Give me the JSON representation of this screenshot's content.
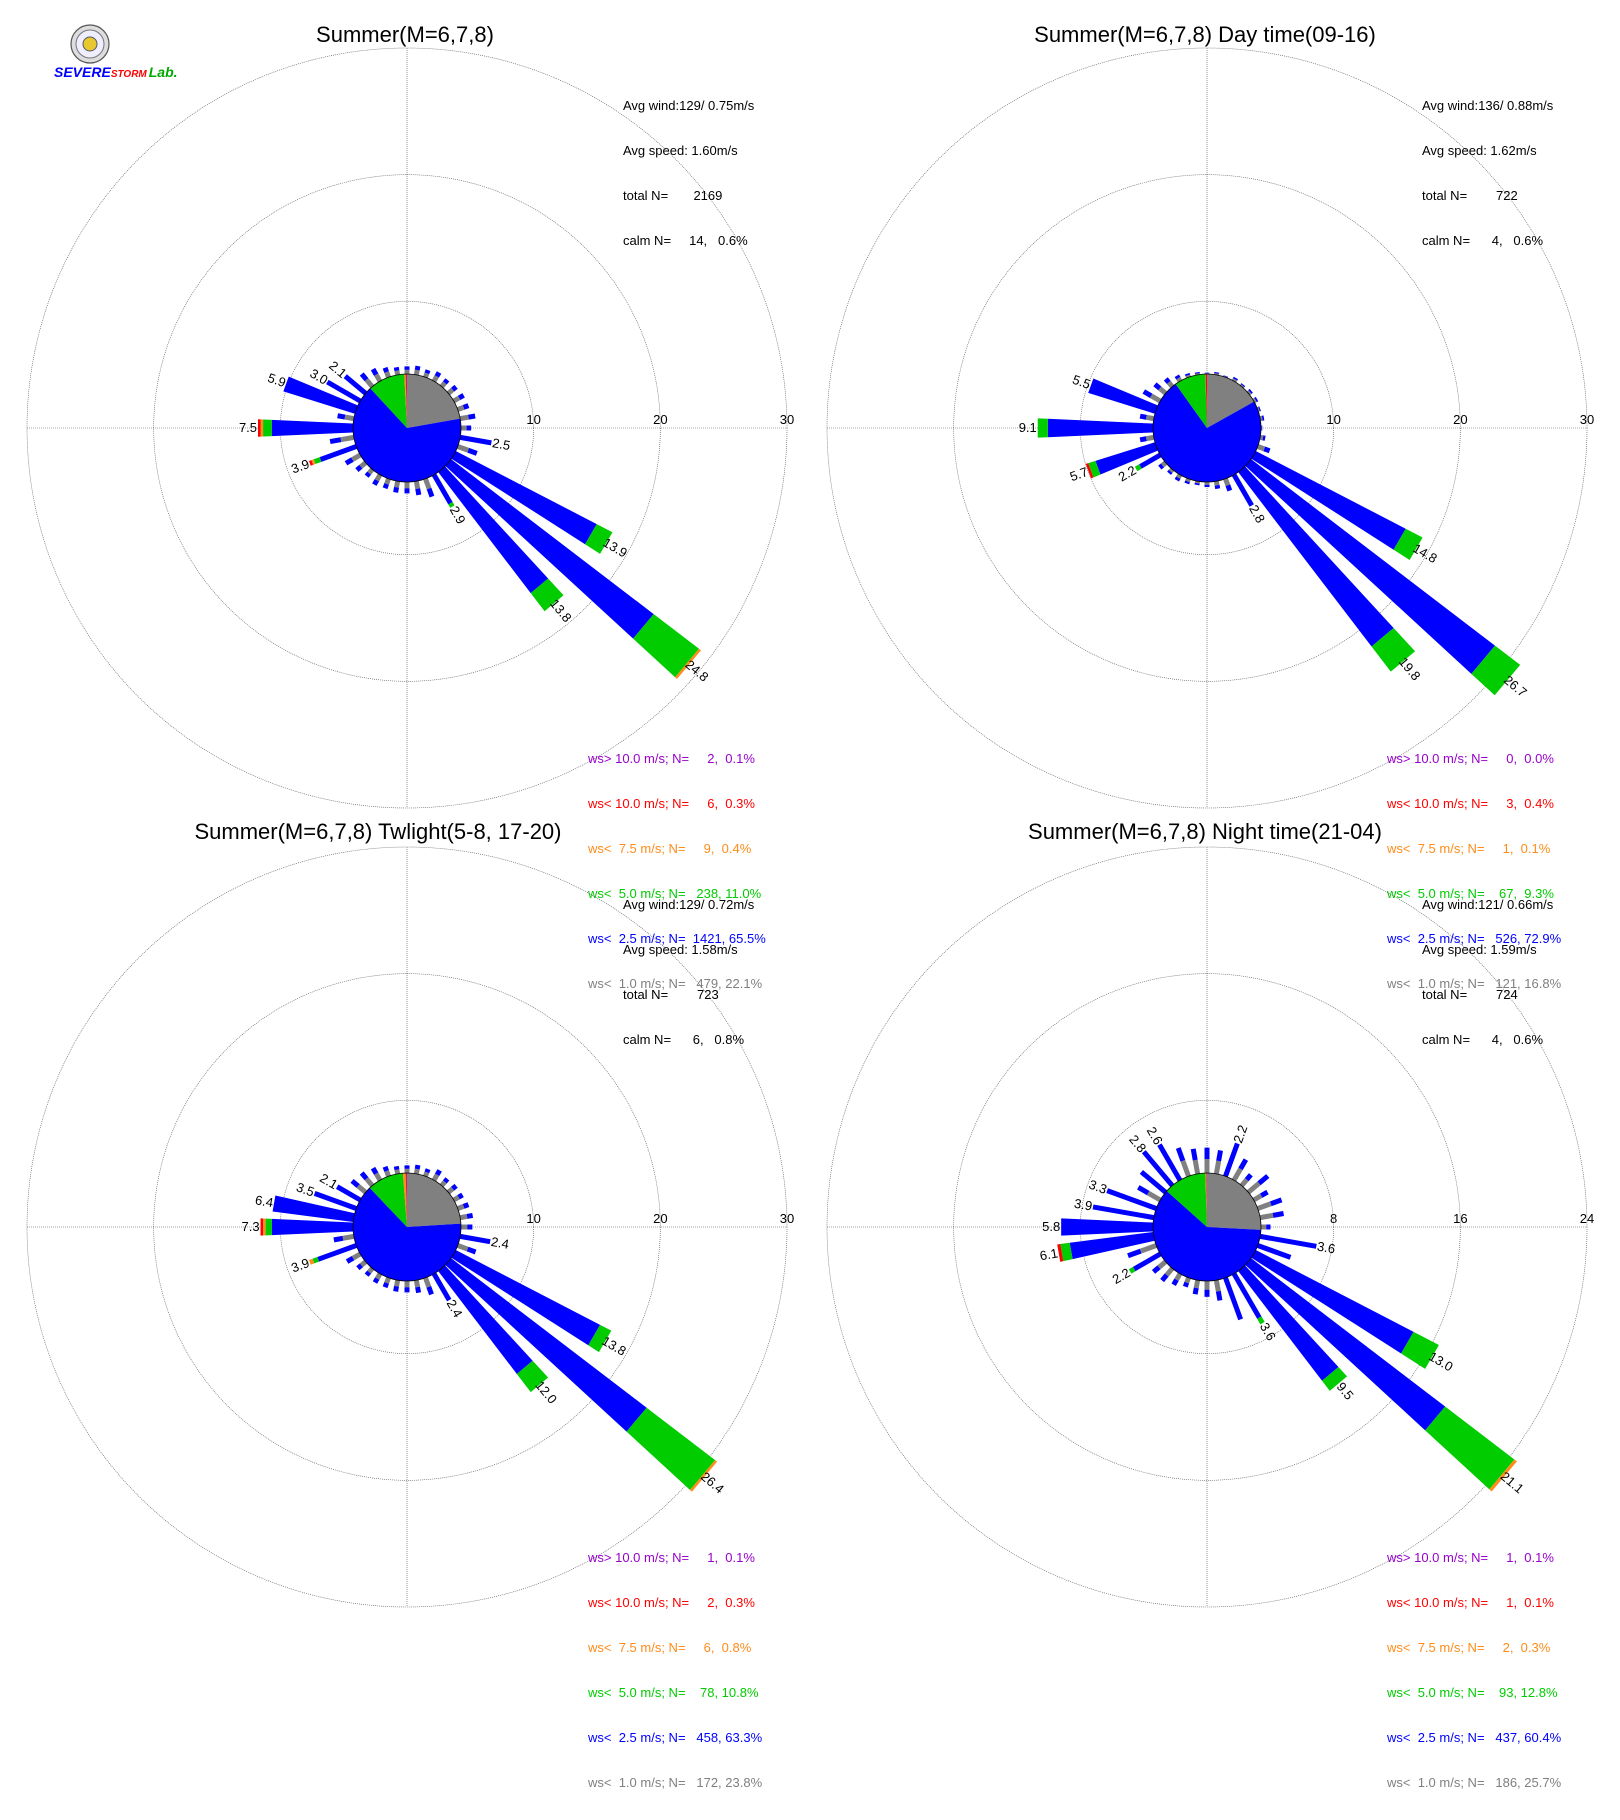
{
  "logo": {
    "text_severe": "SEVERE",
    "text_storm": "STORM",
    "text_lab": "Lab."
  },
  "colors": {
    "gt10": "#9900cc",
    "lt10": "#ff0000",
    "lt7_5": "#ff8c1a",
    "lt5": "#00cc00",
    "lt2_5": "#0000ff",
    "lt1": "#808080"
  },
  "panels": [
    {
      "title": "Summer(M=6,7,8)",
      "stats": [
        "Avg wind:129/ 0.75m/s",
        "Avg speed: 1.60m/s",
        "total N=       2169",
        "calm N=     14,   0.6%"
      ],
      "legend": [
        {
          "text": "ws> 10.0 m/s; N=     2,  0.1%",
          "color": "#9900cc"
        },
        {
          "text": "ws< 10.0 m/s; N=     6,  0.3%",
          "color": "#ff0000"
        },
        {
          "text": "ws<  7.5 m/s; N=     9,  0.4%",
          "color": "#ff8c1a"
        },
        {
          "text": "ws<  5.0 m/s; N=   238, 11.0%",
          "color": "#00cc00"
        },
        {
          "text": "ws<  2.5 m/s; N=  1421, 65.5%",
          "color": "#0000ff"
        },
        {
          "text": "ws<  1.0 m/s; N=   479, 22.1%",
          "color": "#808080"
        }
      ]
    },
    {
      "title": "Summer(M=6,7,8) Day time(09-16)",
      "stats": [
        "Avg wind:136/ 0.88m/s",
        "Avg speed: 1.62m/s",
        "total N=        722",
        "calm N=      4,   0.6%"
      ],
      "legend": [
        {
          "text": "ws> 10.0 m/s; N=     0,  0.0%",
          "color": "#9900cc"
        },
        {
          "text": "ws< 10.0 m/s; N=     3,  0.4%",
          "color": "#ff0000"
        },
        {
          "text": "ws<  7.5 m/s; N=     1,  0.1%",
          "color": "#ff8c1a"
        },
        {
          "text": "ws<  5.0 m/s; N=    67,  9.3%",
          "color": "#00cc00"
        },
        {
          "text": "ws<  2.5 m/s; N=   526, 72.9%",
          "color": "#0000ff"
        },
        {
          "text": "ws<  1.0 m/s; N=   121, 16.8%",
          "color": "#808080"
        }
      ]
    },
    {
      "title": "Summer(M=6,7,8) Twlight(5-8, 17-20)",
      "stats": [
        "Avg wind:129/ 0.72m/s",
        "Avg speed: 1.58m/s",
        "total N=        723",
        "calm N=      6,   0.8%"
      ],
      "legend": [
        {
          "text": "ws> 10.0 m/s; N=     1,  0.1%",
          "color": "#9900cc"
        },
        {
          "text": "ws< 10.0 m/s; N=     2,  0.3%",
          "color": "#ff0000"
        },
        {
          "text": "ws<  7.5 m/s; N=     6,  0.8%",
          "color": "#ff8c1a"
        },
        {
          "text": "ws<  5.0 m/s; N=    78, 10.8%",
          "color": "#00cc00"
        },
        {
          "text": "ws<  2.5 m/s; N=   458, 63.3%",
          "color": "#0000ff"
        },
        {
          "text": "ws<  1.0 m/s; N=   172, 23.8%",
          "color": "#808080"
        }
      ]
    },
    {
      "title": "Summer(M=6,7,8) Night time(21-04)",
      "stats": [
        "Avg wind:121/ 0.66m/s",
        "Avg speed: 1.59m/s",
        "total N=        724",
        "calm N=      4,   0.6%"
      ],
      "legend": [
        {
          "text": "ws> 10.0 m/s; N=     1,  0.1%",
          "color": "#9900cc"
        },
        {
          "text": "ws< 10.0 m/s; N=     1,  0.1%",
          "color": "#ff0000"
        },
        {
          "text": "ws<  7.5 m/s; N=     2,  0.3%",
          "color": "#ff8c1a"
        },
        {
          "text": "ws<  5.0 m/s; N=    93, 12.8%",
          "color": "#00cc00"
        },
        {
          "text": "ws<  2.5 m/s; N=   437, 60.4%",
          "color": "#0000ff"
        },
        {
          "text": "ws<  1.0 m/s; N=   186, 25.7%",
          "color": "#808080"
        }
      ]
    }
  ],
  "chart_data": [
    {
      "type": "windrose",
      "title": "Summer(M=6,7,8)",
      "rmax": 30,
      "rings": [
        10,
        20,
        30
      ],
      "grid": true,
      "pie_percent": {
        "lt1": 22.1,
        "lt2_5": 65.5,
        "lt5": 11.0,
        "lt7_5": 0.4,
        "lt10": 0.3,
        "gt10": 0.1
      },
      "sectors": [
        {
          "dir": 0,
          "total": 0.6
        },
        {
          "dir": 10,
          "total": 0.7
        },
        {
          "dir": 20,
          "total": 0.6
        },
        {
          "dir": 30,
          "total": 0.8
        },
        {
          "dir": 40,
          "total": 0.7
        },
        {
          "dir": 50,
          "total": 0.8
        },
        {
          "dir": 60,
          "total": 0.9
        },
        {
          "dir": 70,
          "total": 0.9
        },
        {
          "dir": 80,
          "total": 1.2
        },
        {
          "dir": 90,
          "total": 0.8
        },
        {
          "dir": 100,
          "total": 2.5,
          "label": "2.5"
        },
        {
          "dir": 110,
          "total": 1.6
        },
        {
          "dir": 120,
          "total": 13.9,
          "label": "13.9",
          "green": 1.4
        },
        {
          "dir": 130,
          "total": 24.8,
          "label": "24.8",
          "green": 4.5,
          "orange": 0.2
        },
        {
          "dir": 140,
          "total": 13.8,
          "label": "13.8",
          "green": 1.8
        },
        {
          "dir": 150,
          "total": 2.9,
          "label": "2.9",
          "green": 0.3
        },
        {
          "dir": 160,
          "total": 1.5
        },
        {
          "dir": 170,
          "total": 1.1
        },
        {
          "dir": 180,
          "total": 0.9
        },
        {
          "dir": 190,
          "total": 0.9
        },
        {
          "dir": 200,
          "total": 0.8
        },
        {
          "dir": 210,
          "total": 0.9
        },
        {
          "dir": 220,
          "total": 0.7
        },
        {
          "dir": 230,
          "total": 0.9
        },
        {
          "dir": 240,
          "total": 1.3
        },
        {
          "dir": 250,
          "total": 3.9,
          "label": "3.9",
          "green": 0.5,
          "orange": 0.2,
          "red": 0.2
        },
        {
          "dir": 260,
          "total": 1.9
        },
        {
          "dir": 270,
          "total": 7.5,
          "label": "7.5",
          "green": 0.7,
          "orange": 0.2,
          "red": 0.2
        },
        {
          "dir": 280,
          "total": 1.3
        },
        {
          "dir": 290,
          "total": 5.9,
          "label": "5.9"
        },
        {
          "dir": 300,
          "total": 3.0,
          "label": "3.0"
        },
        {
          "dir": 310,
          "total": 2.1,
          "label": "2.1"
        },
        {
          "dir": 320,
          "total": 1.3
        },
        {
          "dir": 330,
          "total": 1.1
        },
        {
          "dir": 340,
          "total": 0.8
        },
        {
          "dir": 350,
          "total": 0.6
        }
      ]
    },
    {
      "type": "windrose",
      "title": "Summer(M=6,7,8) Day time(09-16)",
      "rmax": 30,
      "rings": [
        10,
        20,
        30
      ],
      "grid": true,
      "pie_percent": {
        "lt1": 16.8,
        "lt2_5": 72.9,
        "lt5": 9.3,
        "lt7_5": 0.1,
        "lt10": 0.4,
        "gt10": 0.0
      },
      "sectors": [
        {
          "dir": 0,
          "total": 0.1
        },
        {
          "dir": 10,
          "total": 0.2
        },
        {
          "dir": 20,
          "total": 0.1
        },
        {
          "dir": 30,
          "total": 0.3
        },
        {
          "dir": 40,
          "total": 0.2
        },
        {
          "dir": 50,
          "total": 0.3
        },
        {
          "dir": 60,
          "total": 0.3
        },
        {
          "dir": 70,
          "total": 0.2
        },
        {
          "dir": 80,
          "total": 0.3
        },
        {
          "dir": 90,
          "total": 0.1
        },
        {
          "dir": 100,
          "total": 0.4
        },
        {
          "dir": 110,
          "total": 1.0
        },
        {
          "dir": 120,
          "total": 14.8,
          "label": "14.8",
          "green": 1.5
        },
        {
          "dir": 130,
          "total": 26.7,
          "label": "26.7",
          "green": 2.5
        },
        {
          "dir": 140,
          "total": 19.8,
          "label": "19.8",
          "green": 2.5
        },
        {
          "dir": 150,
          "total": 2.8,
          "label": "2.8"
        },
        {
          "dir": 160,
          "total": 1.0
        },
        {
          "dir": 170,
          "total": 0.6
        },
        {
          "dir": 180,
          "total": 0.4
        },
        {
          "dir": 190,
          "total": 0.3
        },
        {
          "dir": 200,
          "total": 0.4
        },
        {
          "dir": 210,
          "total": 0.5
        },
        {
          "dir": 220,
          "total": 0.4
        },
        {
          "dir": 230,
          "total": 0.6
        },
        {
          "dir": 240,
          "total": 2.2,
          "label": "2.2",
          "green": 0.4
        },
        {
          "dir": 250,
          "total": 5.7,
          "label": "5.7",
          "green": 0.6,
          "red": 0.2
        },
        {
          "dir": 260,
          "total": 1.1
        },
        {
          "dir": 270,
          "total": 9.1,
          "label": "9.1",
          "green": 0.8
        },
        {
          "dir": 280,
          "total": 1.1
        },
        {
          "dir": 290,
          "total": 5.5,
          "label": "5.5"
        },
        {
          "dir": 300,
          "total": 1.5
        },
        {
          "dir": 310,
          "total": 1.1
        },
        {
          "dir": 320,
          "total": 0.8
        },
        {
          "dir": 330,
          "total": 0.5
        },
        {
          "dir": 340,
          "total": 0.3
        },
        {
          "dir": 350,
          "total": 0.2
        }
      ]
    },
    {
      "type": "windrose",
      "title": "Summer(M=6,7,8) Twlight(5-8, 17-20)",
      "rmax": 30,
      "rings": [
        10,
        20,
        30
      ],
      "grid": true,
      "pie_percent": {
        "lt1": 23.8,
        "lt2_5": 63.3,
        "lt5": 10.8,
        "lt7_5": 0.8,
        "lt10": 0.3,
        "gt10": 0.1
      },
      "sectors": [
        {
          "dir": 0,
          "total": 0.6
        },
        {
          "dir": 10,
          "total": 0.7
        },
        {
          "dir": 20,
          "total": 0.6
        },
        {
          "dir": 30,
          "total": 0.9
        },
        {
          "dir": 40,
          "total": 0.7
        },
        {
          "dir": 50,
          "total": 0.8
        },
        {
          "dir": 60,
          "total": 0.8
        },
        {
          "dir": 70,
          "total": 0.9
        },
        {
          "dir": 80,
          "total": 1.0
        },
        {
          "dir": 90,
          "total": 0.9
        },
        {
          "dir": 100,
          "total": 2.4,
          "label": "2.4"
        },
        {
          "dir": 110,
          "total": 1.5
        },
        {
          "dir": 120,
          "total": 13.8,
          "label": "13.8",
          "green": 1.0
        },
        {
          "dir": 130,
          "total": 26.4,
          "label": "26.4",
          "green": 6.8,
          "orange": 0.2
        },
        {
          "dir": 140,
          "total": 12.0,
          "label": "12.0",
          "green": 1.8
        },
        {
          "dir": 150,
          "total": 2.4,
          "label": "2.4"
        },
        {
          "dir": 160,
          "total": 1.4
        },
        {
          "dir": 170,
          "total": 1.0
        },
        {
          "dir": 180,
          "total": 0.9
        },
        {
          "dir": 190,
          "total": 0.9
        },
        {
          "dir": 200,
          "total": 0.8
        },
        {
          "dir": 210,
          "total": 0.8
        },
        {
          "dir": 220,
          "total": 0.7
        },
        {
          "dir": 230,
          "total": 0.8
        },
        {
          "dir": 240,
          "total": 1.2
        },
        {
          "dir": 250,
          "total": 3.9,
          "label": "3.9",
          "green": 0.4,
          "orange": 0.3
        },
        {
          "dir": 260,
          "total": 1.6
        },
        {
          "dir": 270,
          "total": 7.3,
          "label": "7.3",
          "green": 0.5,
          "orange": 0.2,
          "red": 0.2
        },
        {
          "dir": 280,
          "total": 6.4,
          "label": "6.4"
        },
        {
          "dir": 290,
          "total": 3.5,
          "label": "3.5"
        },
        {
          "dir": 300,
          "total": 2.1,
          "label": "2.1"
        },
        {
          "dir": 310,
          "total": 1.4
        },
        {
          "dir": 320,
          "total": 1.3
        },
        {
          "dir": 330,
          "total": 1.1
        },
        {
          "dir": 340,
          "total": 0.8
        },
        {
          "dir": 350,
          "total": 0.6
        }
      ]
    },
    {
      "type": "windrose",
      "title": "Summer(M=6,7,8) Night time(21-04)",
      "rmax": 24,
      "rings": [
        8,
        16,
        24
      ],
      "grid": true,
      "pie_percent": {
        "lt1": 25.7,
        "lt2_5": 60.4,
        "lt5": 12.8,
        "lt7_5": 0.3,
        "lt10": 0.1,
        "gt10": 0.1
      },
      "sectors": [
        {
          "dir": 0,
          "total": 1.6
        },
        {
          "dir": 10,
          "total": 1.5
        },
        {
          "dir": 20,
          "total": 2.2,
          "label": "2.2"
        },
        {
          "dir": 30,
          "total": 1.5
        },
        {
          "dir": 40,
          "total": 0.9
        },
        {
          "dir": 50,
          "total": 1.6
        },
        {
          "dir": 60,
          "total": 1.0
        },
        {
          "dir": 70,
          "total": 1.6
        },
        {
          "dir": 80,
          "total": 1.5
        },
        {
          "dir": 90,
          "total": 0.6
        },
        {
          "dir": 100,
          "total": 3.6,
          "label": "3.6"
        },
        {
          "dir": 110,
          "total": 2.2
        },
        {
          "dir": 120,
          "total": 13.0,
          "label": "13.0",
          "green": 1.8
        },
        {
          "dir": 130,
          "total": 21.1,
          "label": "21.1",
          "green": 5.5,
          "orange": 0.2
        },
        {
          "dir": 140,
          "total": 9.5,
          "label": "9.5",
          "green": 0.8
        },
        {
          "dir": 150,
          "total": 3.6,
          "label": "3.6",
          "green": 0.4
        },
        {
          "dir": 160,
          "total": 2.8
        },
        {
          "dir": 170,
          "total": 1.3
        },
        {
          "dir": 180,
          "total": 1.0
        },
        {
          "dir": 190,
          "total": 0.9
        },
        {
          "dir": 200,
          "total": 0.6
        },
        {
          "dir": 210,
          "total": 0.8
        },
        {
          "dir": 220,
          "total": 1.0
        },
        {
          "dir": 230,
          "total": 1.0
        },
        {
          "dir": 240,
          "total": 2.2,
          "label": "2.2",
          "green": 0.3
        },
        {
          "dir": 250,
          "total": 1.9
        },
        {
          "dir": 260,
          "total": 6.1,
          "label": "6.1",
          "green": 0.6,
          "red": 0.2
        },
        {
          "dir": 270,
          "total": 5.8,
          "label": "5.8"
        },
        {
          "dir": 280,
          "total": 3.9,
          "label": "3.9"
        },
        {
          "dir": 290,
          "total": 3.3,
          "label": "3.3"
        },
        {
          "dir": 300,
          "total": 1.6
        },
        {
          "dir": 310,
          "total": 2.0
        },
        {
          "dir": 320,
          "total": 2.8,
          "label": "2.8"
        },
        {
          "dir": 330,
          "total": 2.6,
          "label": "2.6"
        },
        {
          "dir": 340,
          "total": 1.9
        },
        {
          "dir": 350,
          "total": 1.6
        }
      ]
    }
  ]
}
